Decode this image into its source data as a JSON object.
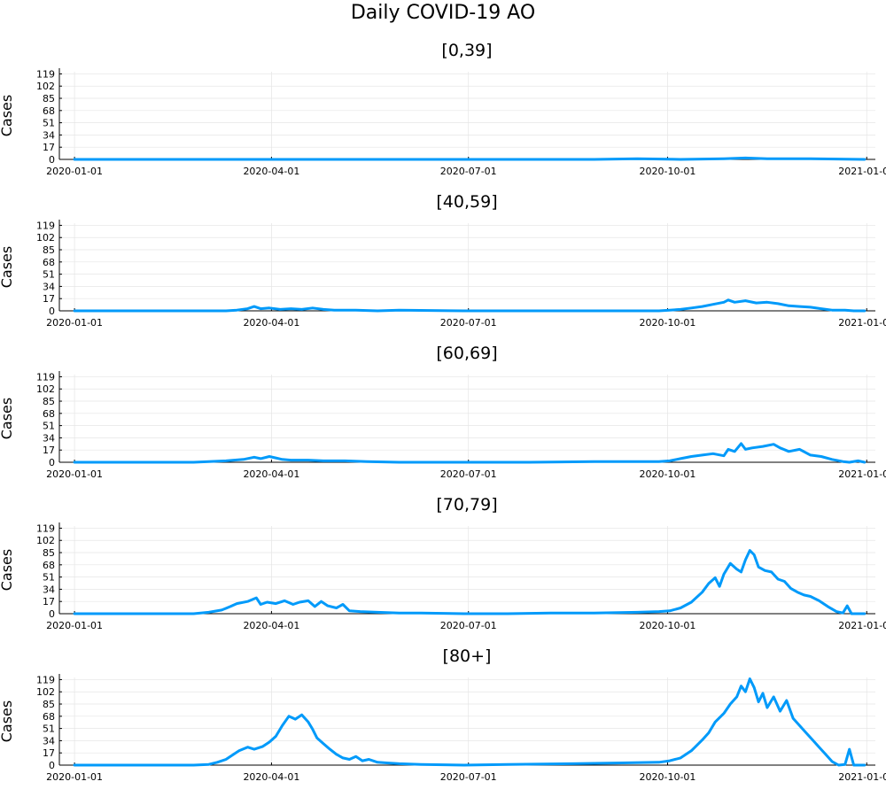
{
  "title": "Daily COVID-19 AO",
  "colors": {
    "series": "#009AFA",
    "axis": "#000000",
    "grid": "#e5e5e5"
  },
  "chart_data": [
    {
      "type": "line",
      "title": "[0,39]",
      "ylabel": "Cases",
      "yticks": [
        0,
        17,
        34,
        51,
        68,
        85,
        102,
        119
      ],
      "ylim": [
        0,
        122
      ],
      "xlim": [
        "2019-12-25",
        "2021-01-05"
      ],
      "xticks": [
        "2020-01-01",
        "2020-04-01",
        "2020-07-01",
        "2020-10-01",
        "2021-01-01"
      ],
      "grid": true,
      "series": [
        {
          "x_start": "2020-01-01",
          "x_end": "2020-12-31",
          "points": [
            [
              0,
              0
            ],
            [
              60,
              0
            ],
            [
              120,
              0
            ],
            [
              180,
              0
            ],
            [
              240,
              0
            ],
            [
              260,
              1
            ],
            [
              280,
              0
            ],
            [
              300,
              1
            ],
            [
              310,
              2
            ],
            [
              320,
              1
            ],
            [
              340,
              1
            ],
            [
              365,
              0
            ]
          ]
        }
      ]
    },
    {
      "type": "line",
      "title": "[40,59]",
      "ylabel": "Cases",
      "yticks": [
        0,
        17,
        34,
        51,
        68,
        85,
        102,
        119
      ],
      "ylim": [
        0,
        122
      ],
      "xlim": [
        "2019-12-25",
        "2021-01-05"
      ],
      "xticks": [
        "2020-01-01",
        "2020-04-01",
        "2020-07-01",
        "2020-10-01",
        "2021-01-01"
      ],
      "grid": true,
      "series": [
        {
          "x_start": "2020-01-01",
          "x_end": "2020-12-31",
          "points": [
            [
              0,
              0
            ],
            [
              60,
              0
            ],
            [
              70,
              0
            ],
            [
              75,
              1
            ],
            [
              80,
              3
            ],
            [
              83,
              6
            ],
            [
              86,
              3
            ],
            [
              90,
              4
            ],
            [
              95,
              2
            ],
            [
              100,
              3
            ],
            [
              105,
              2
            ],
            [
              110,
              4
            ],
            [
              115,
              2
            ],
            [
              120,
              1
            ],
            [
              130,
              1
            ],
            [
              140,
              0
            ],
            [
              150,
              1
            ],
            [
              180,
              0
            ],
            [
              210,
              0
            ],
            [
              240,
              0
            ],
            [
              270,
              0
            ],
            [
              275,
              1
            ],
            [
              280,
              2
            ],
            [
              285,
              4
            ],
            [
              290,
              6
            ],
            [
              295,
              9
            ],
            [
              300,
              12
            ],
            [
              302,
              15
            ],
            [
              305,
              12
            ],
            [
              310,
              14
            ],
            [
              315,
              11
            ],
            [
              320,
              12
            ],
            [
              325,
              10
            ],
            [
              330,
              7
            ],
            [
              335,
              6
            ],
            [
              340,
              5
            ],
            [
              345,
              3
            ],
            [
              350,
              1
            ],
            [
              356,
              1
            ],
            [
              360,
              0
            ],
            [
              365,
              0
            ]
          ]
        }
      ]
    },
    {
      "type": "line",
      "title": "[60,69]",
      "ylabel": "Cases",
      "yticks": [
        0,
        17,
        34,
        51,
        68,
        85,
        102,
        119
      ],
      "ylim": [
        0,
        122
      ],
      "xlim": [
        "2019-12-25",
        "2021-01-05"
      ],
      "xticks": [
        "2020-01-01",
        "2020-04-01",
        "2020-07-01",
        "2020-10-01",
        "2021-01-01"
      ],
      "grid": true,
      "series": [
        {
          "x_start": "2020-01-01",
          "x_end": "2020-12-31",
          "points": [
            [
              0,
              0
            ],
            [
              55,
              0
            ],
            [
              62,
              1
            ],
            [
              70,
              2
            ],
            [
              78,
              4
            ],
            [
              83,
              7
            ],
            [
              86,
              5
            ],
            [
              90,
              8
            ],
            [
              93,
              6
            ],
            [
              96,
              4
            ],
            [
              100,
              3
            ],
            [
              108,
              3
            ],
            [
              115,
              2
            ],
            [
              125,
              2
            ],
            [
              135,
              1
            ],
            [
              150,
              0
            ],
            [
              180,
              0
            ],
            [
              210,
              0
            ],
            [
              240,
              1
            ],
            [
              270,
              1
            ],
            [
              275,
              2
            ],
            [
              280,
              5
            ],
            [
              285,
              8
            ],
            [
              290,
              10
            ],
            [
              295,
              12
            ],
            [
              300,
              9
            ],
            [
              302,
              18
            ],
            [
              305,
              15
            ],
            [
              308,
              26
            ],
            [
              310,
              18
            ],
            [
              313,
              20
            ],
            [
              318,
              22
            ],
            [
              323,
              25
            ],
            [
              326,
              20
            ],
            [
              330,
              15
            ],
            [
              335,
              18
            ],
            [
              340,
              10
            ],
            [
              345,
              8
            ],
            [
              350,
              4
            ],
            [
              355,
              1
            ],
            [
              358,
              0
            ],
            [
              362,
              2
            ],
            [
              365,
              0
            ]
          ]
        }
      ]
    },
    {
      "type": "line",
      "title": "[70,79]",
      "ylabel": "Cases",
      "yticks": [
        0,
        17,
        34,
        51,
        68,
        85,
        102,
        119
      ],
      "ylim": [
        0,
        122
      ],
      "xlim": [
        "2019-12-25",
        "2021-01-05"
      ],
      "xticks": [
        "2020-01-01",
        "2020-04-01",
        "2020-07-01",
        "2020-10-01",
        "2021-01-01"
      ],
      "grid": true,
      "series": [
        {
          "x_start": "2020-01-01",
          "x_end": "2020-12-31",
          "points": [
            [
              0,
              0
            ],
            [
              55,
              0
            ],
            [
              62,
              2
            ],
            [
              68,
              5
            ],
            [
              72,
              10
            ],
            [
              75,
              14
            ],
            [
              80,
              17
            ],
            [
              84,
              22
            ],
            [
              86,
              13
            ],
            [
              89,
              16
            ],
            [
              93,
              14
            ],
            [
              97,
              18
            ],
            [
              101,
              13
            ],
            [
              104,
              16
            ],
            [
              108,
              18
            ],
            [
              111,
              10
            ],
            [
              114,
              17
            ],
            [
              117,
              11
            ],
            [
              121,
              8
            ],
            [
              124,
              13
            ],
            [
              127,
              4
            ],
            [
              132,
              3
            ],
            [
              140,
              2
            ],
            [
              150,
              1
            ],
            [
              160,
              1
            ],
            [
              180,
              0
            ],
            [
              200,
              0
            ],
            [
              220,
              1
            ],
            [
              240,
              1
            ],
            [
              260,
              2
            ],
            [
              270,
              3
            ],
            [
              275,
              4
            ],
            [
              280,
              8
            ],
            [
              285,
              16
            ],
            [
              290,
              30
            ],
            [
              293,
              42
            ],
            [
              296,
              50
            ],
            [
              298,
              38
            ],
            [
              300,
              55
            ],
            [
              303,
              70
            ],
            [
              306,
              62
            ],
            [
              308,
              58
            ],
            [
              310,
              75
            ],
            [
              312,
              88
            ],
            [
              314,
              82
            ],
            [
              316,
              65
            ],
            [
              319,
              60
            ],
            [
              322,
              58
            ],
            [
              325,
              48
            ],
            [
              328,
              45
            ],
            [
              331,
              35
            ],
            [
              334,
              30
            ],
            [
              337,
              26
            ],
            [
              340,
              24
            ],
            [
              344,
              18
            ],
            [
              348,
              10
            ],
            [
              352,
              3
            ],
            [
              355,
              1
            ],
            [
              357,
              11
            ],
            [
              359,
              0
            ],
            [
              365,
              0
            ]
          ]
        }
      ]
    },
    {
      "type": "line",
      "title": "[80+]",
      "ylabel": "Cases",
      "yticks": [
        0,
        17,
        34,
        51,
        68,
        85,
        102,
        119
      ],
      "ylim": [
        0,
        122
      ],
      "xlim": [
        "2019-12-25",
        "2021-01-05"
      ],
      "xticks": [
        "2020-01-01",
        "2020-04-01",
        "2020-07-01",
        "2020-10-01",
        "2021-01-01"
      ],
      "grid": true,
      "series": [
        {
          "x_start": "2020-01-01",
          "x_end": "2020-12-31",
          "points": [
            [
              0,
              0
            ],
            [
              55,
              0
            ],
            [
              62,
              1
            ],
            [
              66,
              4
            ],
            [
              70,
              8
            ],
            [
              73,
              14
            ],
            [
              76,
              20
            ],
            [
              80,
              25
            ],
            [
              83,
              22
            ],
            [
              87,
              26
            ],
            [
              90,
              32
            ],
            [
              93,
              40
            ],
            [
              96,
              55
            ],
            [
              99,
              68
            ],
            [
              102,
              64
            ],
            [
              105,
              70
            ],
            [
              108,
              60
            ],
            [
              110,
              50
            ],
            [
              112,
              38
            ],
            [
              115,
              30
            ],
            [
              118,
              22
            ],
            [
              121,
              15
            ],
            [
              124,
              10
            ],
            [
              127,
              8
            ],
            [
              130,
              12
            ],
            [
              133,
              6
            ],
            [
              136,
              8
            ],
            [
              140,
              4
            ],
            [
              145,
              3
            ],
            [
              150,
              2
            ],
            [
              160,
              1
            ],
            [
              180,
              0
            ],
            [
              200,
              1
            ],
            [
              230,
              2
            ],
            [
              250,
              3
            ],
            [
              270,
              4
            ],
            [
              275,
              6
            ],
            [
              280,
              10
            ],
            [
              285,
              20
            ],
            [
              290,
              35
            ],
            [
              293,
              45
            ],
            [
              296,
              60
            ],
            [
              300,
              72
            ],
            [
              303,
              85
            ],
            [
              306,
              95
            ],
            [
              308,
              110
            ],
            [
              310,
              102
            ],
            [
              312,
              120
            ],
            [
              314,
              108
            ],
            [
              316,
              88
            ],
            [
              318,
              100
            ],
            [
              320,
              80
            ],
            [
              323,
              95
            ],
            [
              326,
              75
            ],
            [
              329,
              90
            ],
            [
              332,
              65
            ],
            [
              335,
              55
            ],
            [
              338,
              45
            ],
            [
              341,
              35
            ],
            [
              344,
              25
            ],
            [
              347,
              15
            ],
            [
              350,
              5
            ],
            [
              353,
              0
            ],
            [
              356,
              1
            ],
            [
              358,
              22
            ],
            [
              360,
              0
            ],
            [
              365,
              0
            ]
          ]
        }
      ]
    }
  ]
}
